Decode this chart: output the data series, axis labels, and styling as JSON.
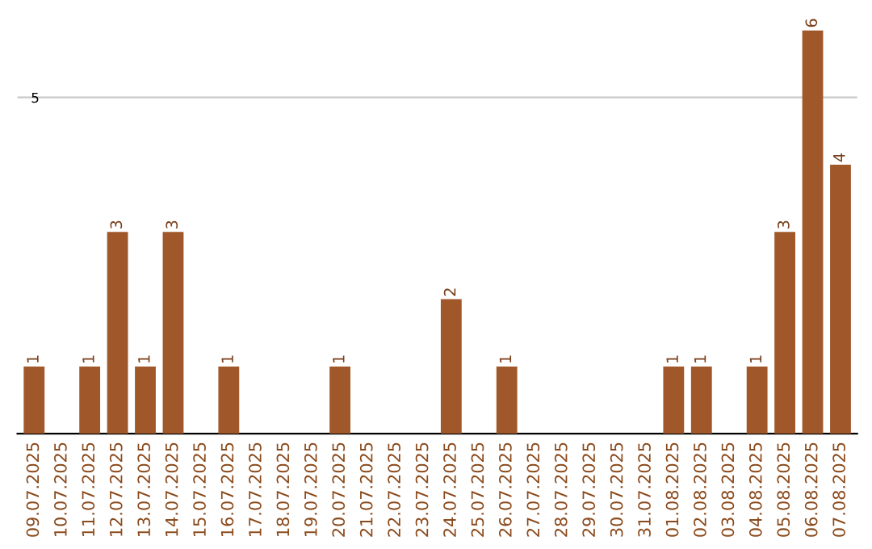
{
  "chart_data": {
    "type": "bar",
    "categories": [
      "09.07.2025",
      "10.07.2025",
      "11.07.2025",
      "12.07.2025",
      "13.07.2025",
      "14.07.2025",
      "15.07.2025",
      "16.07.2025",
      "17.07.2025",
      "18.07.2025",
      "19.07.2025",
      "20.07.2025",
      "21.07.2025",
      "22.07.2025",
      "23.07.2025",
      "24.07.2025",
      "25.07.2025",
      "26.07.2025",
      "27.07.2025",
      "28.07.2025",
      "29.07.2025",
      "30.07.2025",
      "31.07.2025",
      "01.08.2025",
      "02.08.2025",
      "03.08.2025",
      "04.08.2025",
      "05.08.2025",
      "06.08.2025",
      "07.08.2025"
    ],
    "values": [
      1,
      0,
      1,
      3,
      1,
      3,
      0,
      1,
      0,
      0,
      0,
      1,
      0,
      0,
      0,
      2,
      0,
      1,
      0,
      0,
      0,
      0,
      0,
      1,
      1,
      0,
      1,
      3,
      6,
      4
    ],
    "value_labels": [
      "1",
      null,
      "1",
      "3",
      "1",
      "3",
      null,
      "1",
      null,
      null,
      null,
      "1",
      null,
      null,
      null,
      "2",
      null,
      "1",
      null,
      null,
      null,
      null,
      null,
      "1",
      "1",
      null,
      "1",
      "3",
      "6",
      "4"
    ],
    "color": "#a0582a",
    "ylim": [
      0,
      6
    ],
    "yticks": [
      5
    ],
    "grid": "y"
  }
}
